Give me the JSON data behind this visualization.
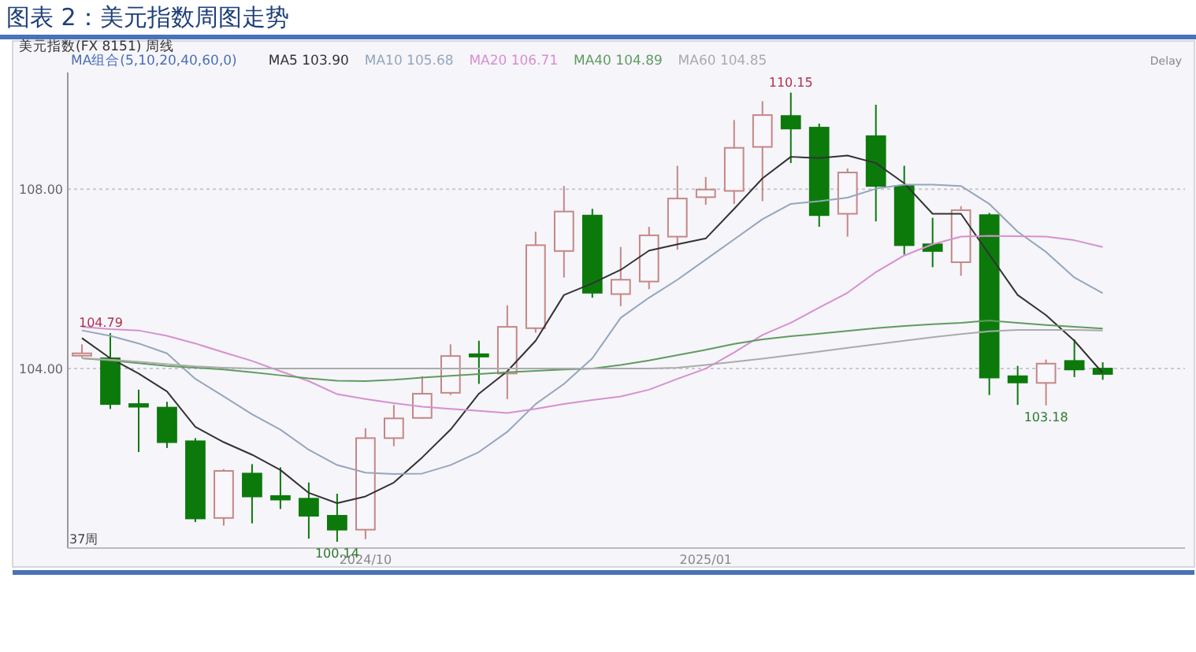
{
  "chart_data": {
    "type": "candlestick",
    "title": "图表 2：美元指数周图走势",
    "subtitle": "美元指数(FX 8151)  周线",
    "legend_title": "MA组合(5,10,20,40,60,0)",
    "categories": [
      null,
      null,
      null,
      null,
      null,
      null,
      null,
      null,
      null,
      null,
      "2024/10",
      null,
      null,
      null,
      null,
      null,
      null,
      null,
      null,
      null,
      null,
      null,
      "2025/01",
      null,
      null,
      null,
      null,
      null,
      null,
      null,
      null,
      null,
      null,
      null,
      null,
      null,
      null
    ],
    "ohlc": [
      [
        104.34,
        104.54,
        104.24,
        104.34
      ],
      [
        104.23,
        104.79,
        103.1,
        103.21
      ],
      [
        103.21,
        103.53,
        102.14,
        103.15
      ],
      [
        103.13,
        103.26,
        102.23,
        102.36
      ],
      [
        102.38,
        102.45,
        100.58,
        100.66
      ],
      [
        100.67,
        101.76,
        100.5,
        101.72
      ],
      [
        101.66,
        101.87,
        100.55,
        101.15
      ],
      [
        101.16,
        101.8,
        100.87,
        101.08
      ],
      [
        101.1,
        101.46,
        100.21,
        100.72
      ],
      [
        100.72,
        101.21,
        100.14,
        100.41
      ],
      [
        100.41,
        102.67,
        100.2,
        102.45
      ],
      [
        102.45,
        103.19,
        102.27,
        102.89
      ],
      [
        102.9,
        103.83,
        102.88,
        103.44
      ],
      [
        103.46,
        104.54,
        103.41,
        104.28
      ],
      [
        104.32,
        104.62,
        103.66,
        104.28
      ],
      [
        103.89,
        105.41,
        103.32,
        104.93
      ],
      [
        104.9,
        107.05,
        104.8,
        106.75
      ],
      [
        106.62,
        108.07,
        106.03,
        107.5
      ],
      [
        107.41,
        107.56,
        105.58,
        105.69
      ],
      [
        105.66,
        106.71,
        105.39,
        105.98
      ],
      [
        105.94,
        107.16,
        105.77,
        106.97
      ],
      [
        106.94,
        108.52,
        106.65,
        107.79
      ],
      [
        107.82,
        108.27,
        107.65,
        107.99
      ],
      [
        107.96,
        109.54,
        107.67,
        108.92
      ],
      [
        108.94,
        109.96,
        107.73,
        109.65
      ],
      [
        109.63,
        110.15,
        108.58,
        109.35
      ],
      [
        109.37,
        109.46,
        107.16,
        107.42
      ],
      [
        107.45,
        108.46,
        106.94,
        108.37
      ],
      [
        109.18,
        109.88,
        107.28,
        108.07
      ],
      [
        108.07,
        108.52,
        106.54,
        106.75
      ],
      [
        106.77,
        107.36,
        106.26,
        106.62
      ],
      [
        106.37,
        107.62,
        106.07,
        107.53
      ],
      [
        107.42,
        107.47,
        103.41,
        103.8
      ],
      [
        103.83,
        104.06,
        103.19,
        103.69
      ],
      [
        103.68,
        104.2,
        103.18,
        104.11
      ],
      [
        104.17,
        104.65,
        103.81,
        103.98
      ],
      [
        104.0,
        104.14,
        103.75,
        103.88
      ]
    ],
    "series": [
      {
        "name": "MA5 103.90",
        "type": "line",
        "color": "#333333",
        "values": [
          104.68,
          104.23,
          103.89,
          103.49,
          102.7,
          102.36,
          102.08,
          101.74,
          101.23,
          101.0,
          101.15,
          101.46,
          102.02,
          102.64,
          103.44,
          103.94,
          104.62,
          105.64,
          105.9,
          106.2,
          106.63,
          106.77,
          106.9,
          107.56,
          108.24,
          108.72,
          108.69,
          108.75,
          108.58,
          108.13,
          107.45,
          107.45,
          106.54,
          105.64,
          105.19,
          104.62,
          103.9
        ]
      },
      {
        "name": "MA10 105.68",
        "type": "line",
        "color": "#94a6bc",
        "values": [
          104.85,
          104.73,
          104.56,
          104.34,
          103.77,
          103.38,
          102.98,
          102.64,
          102.19,
          101.85,
          101.68,
          101.65,
          101.66,
          101.85,
          102.14,
          102.59,
          103.21,
          103.66,
          104.23,
          105.13,
          105.58,
          105.98,
          106.43,
          106.88,
          107.33,
          107.67,
          107.73,
          107.81,
          108.01,
          108.1,
          108.1,
          108.07,
          107.67,
          107.05,
          106.6,
          106.03,
          105.68
        ]
      },
      {
        "name": "MA20 106.71",
        "type": "line",
        "color": "#d690cf",
        "values": [
          104.93,
          104.88,
          104.85,
          104.73,
          104.56,
          104.36,
          104.17,
          103.94,
          103.72,
          103.43,
          103.32,
          103.23,
          103.15,
          103.1,
          103.06,
          103.01,
          103.1,
          103.21,
          103.3,
          103.38,
          103.53,
          103.77,
          104.0,
          104.36,
          104.75,
          105.02,
          105.36,
          105.69,
          106.15,
          106.52,
          106.77,
          106.94,
          106.96,
          106.95,
          106.94,
          106.86,
          106.71
        ]
      },
      {
        "name": "MA40 104.89",
        "type": "line",
        "color": "#5f9c5f",
        "values": [
          104.23,
          104.18,
          104.12,
          104.06,
          104.02,
          103.98,
          103.92,
          103.85,
          103.78,
          103.73,
          103.72,
          103.75,
          103.8,
          103.84,
          103.88,
          103.92,
          103.95,
          103.98,
          104.0,
          104.08,
          104.18,
          104.3,
          104.42,
          104.55,
          104.65,
          104.72,
          104.78,
          104.84,
          104.9,
          104.95,
          104.99,
          105.02,
          105.07,
          105.02,
          104.97,
          104.93,
          104.89
        ]
      },
      {
        "name": "MA60 104.85",
        "type": "line",
        "color": "#ababab",
        "values": [
          104.23,
          104.2,
          104.15,
          104.1,
          104.05,
          104.02,
          104.0,
          104.0,
          104.0,
          104.0,
          104.0,
          104.0,
          104.0,
          104.0,
          104.0,
          104.0,
          104.0,
          104.0,
          104.0,
          104.0,
          104.0,
          104.02,
          104.08,
          104.15,
          104.22,
          104.3,
          104.38,
          104.46,
          104.54,
          104.62,
          104.7,
          104.77,
          104.83,
          104.86,
          104.86,
          104.86,
          104.85
        ]
      }
    ],
    "ylim": [
      100,
      110.6
    ],
    "yticks": [
      {
        "value": 104,
        "label": "104.00"
      },
      {
        "value": 108,
        "label": "108.00"
      }
    ],
    "grid": "y",
    "annotations": [
      {
        "text": "104.79",
        "y": 104.79
      },
      {
        "text": "110.15",
        "y": 110.15
      },
      {
        "text": "100.14",
        "y": 100.14
      },
      {
        "text": "103.18",
        "y": 103.18
      },
      "37周",
      "Delay"
    ]
  }
}
